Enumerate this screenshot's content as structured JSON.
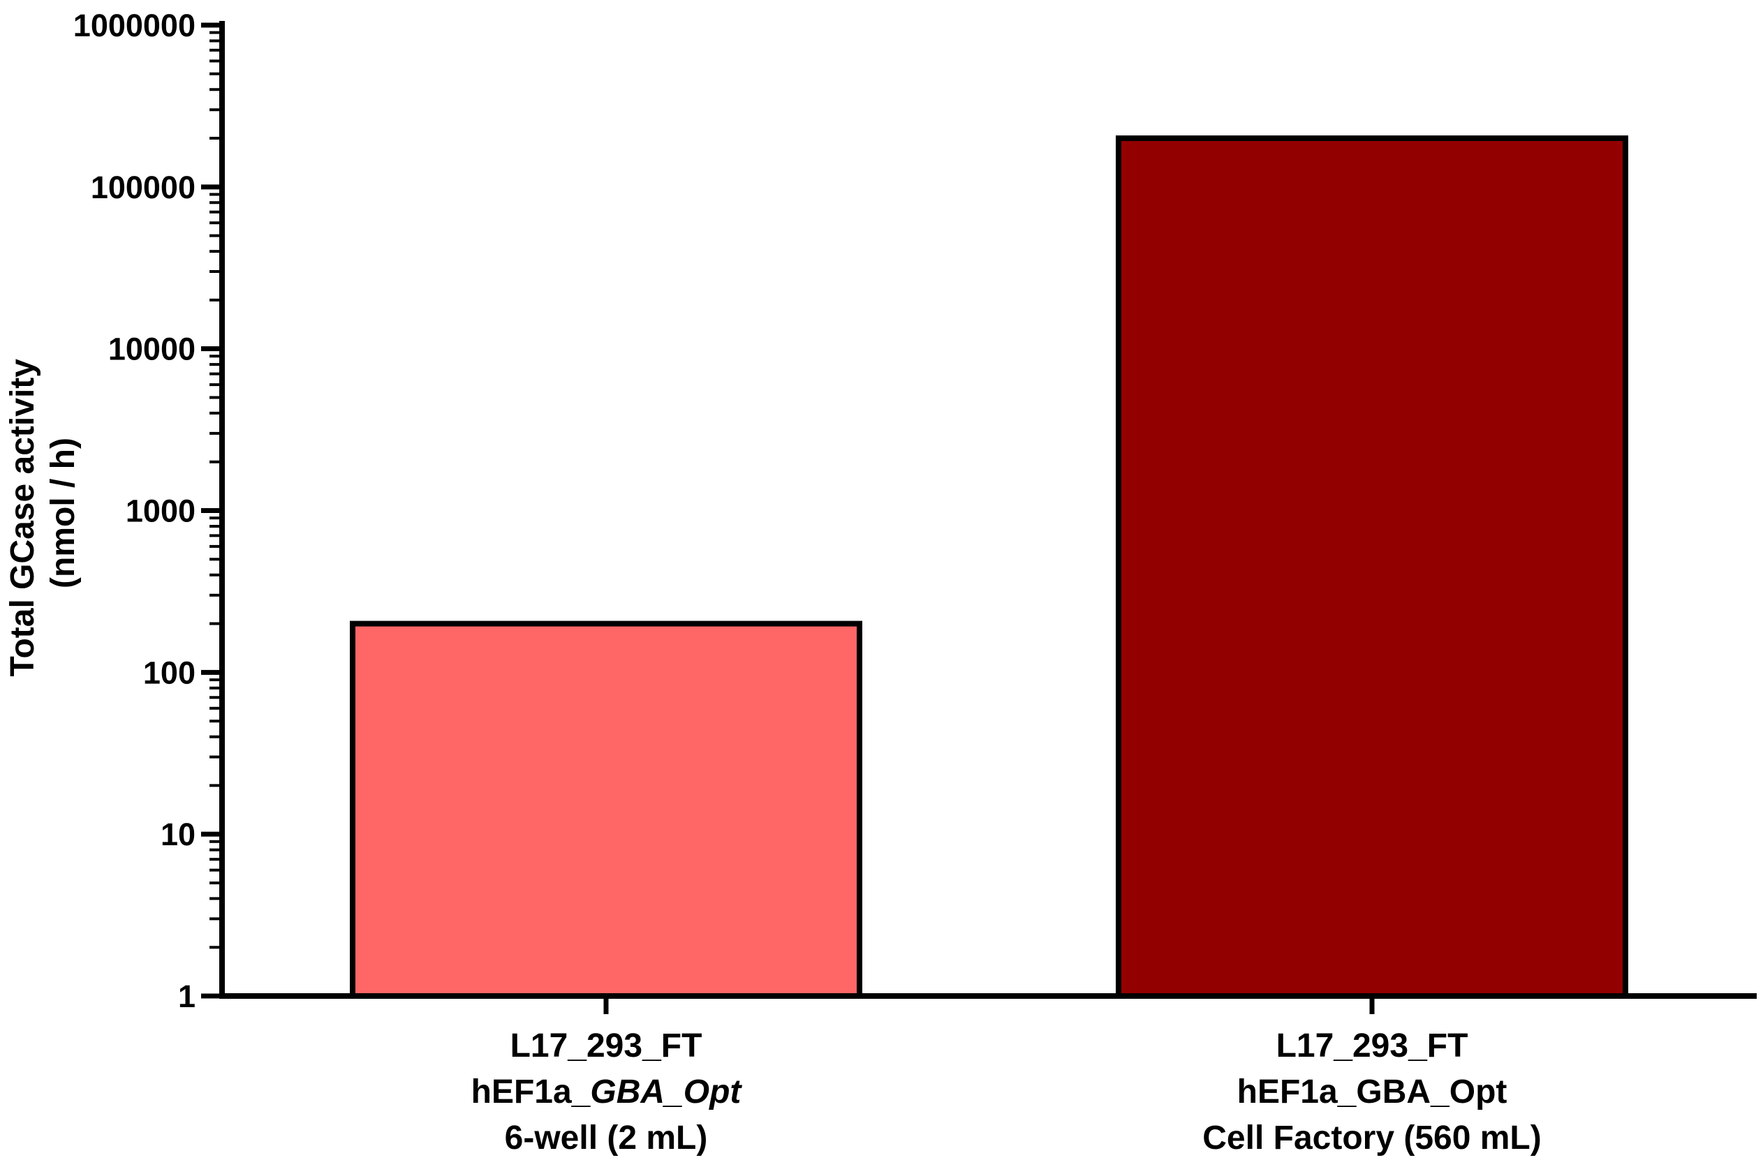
{
  "chart_data": {
    "type": "bar",
    "y_scale": "log10",
    "ylim": [
      1,
      1000000
    ],
    "y_ticks": [
      "1",
      "10",
      "100",
      "1000",
      "10000",
      "100000",
      "1000000"
    ],
    "ylabel_lines": [
      "Total GCase activity",
      "(nmol / h)"
    ],
    "xlabel": "",
    "title": "",
    "grid": false,
    "categories": [
      {
        "line1": "L17_293_FT",
        "line2_prefix": "hEF1a_",
        "line2_italic": "GBA_Opt",
        "line3": "6-well (2 mL)"
      },
      {
        "line1": "L17_293_FT",
        "line2_prefix": "hEF1a_GBA_Opt",
        "line2_italic": "",
        "line3": "Cell Factory (560 mL)"
      }
    ],
    "values": [
      200,
      200000
    ],
    "bar_colors": [
      "#ff6666",
      "#930000"
    ]
  }
}
